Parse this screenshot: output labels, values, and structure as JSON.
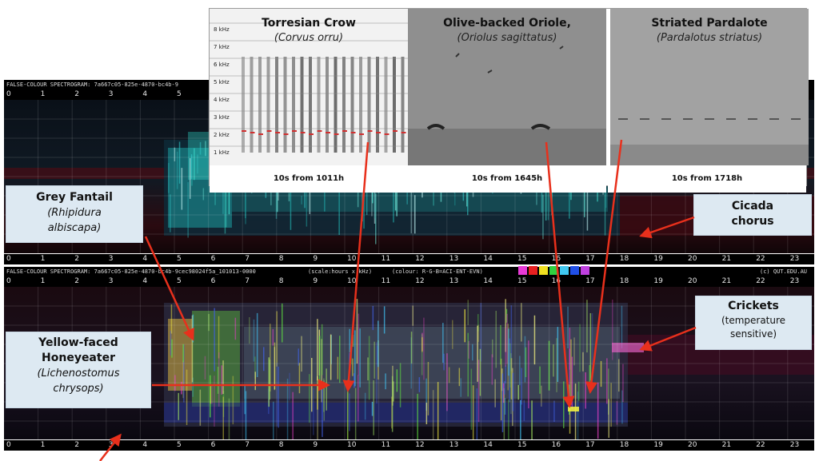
{
  "spectrogram_top": {
    "header": "FALSE-COLOUR SPECTROGRAM: 7a667c05-825e-4870-bc4b-9"
  },
  "spectrogram_bottom": {
    "header_id": "FALSE-COLOUR SPECTROGRAM: 7a667c05-825e-4870-bc4b-9cec98024f5a_101013-0000",
    "header_scale": "(scale:hours x kHz)",
    "header_colour": "(colour: R-G-B=ACI-ENT-EVN)",
    "header_copyright": "(c) QUT.EDU.AU",
    "swatch_colors": [
      "#e83ad6",
      "#e82020",
      "#f0e020",
      "#30d040",
      "#40c8f0",
      "#2050e8",
      "#c040e0"
    ]
  },
  "hour_ticks": [
    "0",
    "1",
    "2",
    "3",
    "4",
    "5",
    "6",
    "7",
    "8",
    "9",
    "10",
    "11",
    "12",
    "13",
    "14",
    "15",
    "16",
    "17",
    "18",
    "19",
    "20",
    "21",
    "22",
    "23"
  ],
  "inset": {
    "khz_labels": [
      "8 kHz",
      "7 kHz",
      "6 kHz",
      "5 kHz",
      "4 kHz",
      "3 kHz",
      "2 kHz",
      "1 kHz"
    ],
    "panels": [
      {
        "title": "Torresian Crow",
        "subtitle": "(Corvus orru)",
        "caption": "10s from 1011h"
      },
      {
        "title": "Olive-backed Oriole,",
        "subtitle": "(Oriolus sagittatus)",
        "caption": "10s from 1645h"
      },
      {
        "title": "Striated Pardalote",
        "subtitle": "(Pardalotus striatus)",
        "caption": "10s from 1718h"
      }
    ]
  },
  "callouts": {
    "grey_fantail": {
      "name": "Grey Fantail",
      "latin_1": "(Rhipidura",
      "latin_2": "albiscapa)"
    },
    "yellow_faced": {
      "name_1": "Yellow-faced",
      "name_2": "Honeyeater",
      "latin_1": "(Lichenostomus",
      "latin_2": "chrysops)"
    },
    "cicada": {
      "name_1": "Cicada",
      "name_2": "chorus"
    },
    "crickets": {
      "name": "Crickets",
      "note_1": "(temperature",
      "note_2": "sensitive)"
    }
  },
  "colors": {
    "arrow": "#e8301c",
    "callout_bg": "#dde9f2"
  }
}
